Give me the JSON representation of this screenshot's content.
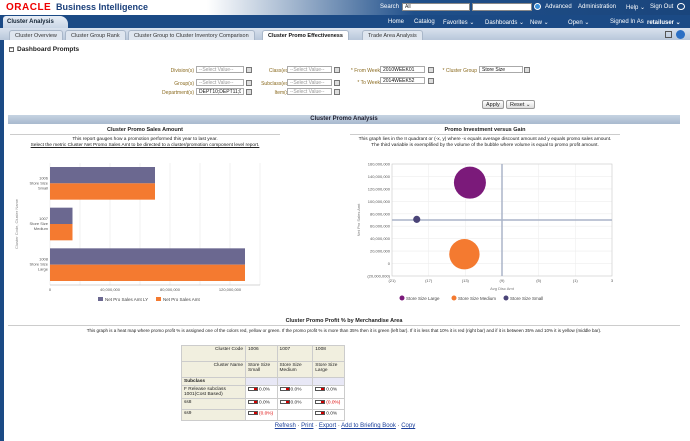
{
  "header": {
    "logo": "ORACLE",
    "title": "Business Intelligence",
    "search_label": "Search",
    "search_scope": "All",
    "advanced": "Advanced",
    "administration": "Administration",
    "help": "Help ⌄",
    "signout": "Sign Out"
  },
  "nav": {
    "dashboard_tab": "Cluster Analysis",
    "home": "Home",
    "catalog": "Catalog",
    "favorites": "Favorites ⌄",
    "dashboards": "Dashboards ⌄",
    "new": "New ⌄",
    "open": "Open ⌄",
    "signed_in_as": "Signed In As",
    "user": "retailuser ⌄"
  },
  "tabs": [
    "Cluster Overview",
    "Cluster Group Rank",
    "Cluster Group to Cluster Inventory Comparison",
    "Cluster Promo Effectiveness",
    "Trade Area Analysis"
  ],
  "prompts": {
    "title": "Dashboard Prompts",
    "division": "Division(s)",
    "group": "Group(s)",
    "department": "Department(s)",
    "class": "Class(es)",
    "subclass": "Subclass(es)",
    "item": "Item(s)",
    "from_week": "* From Week",
    "to_week": "* To Week",
    "cluster_group": "* Cluster Group",
    "placeholder": "--Select Value--",
    "department_value": "DEPT10;DEPT11;D",
    "from_week_value": "2010WEEK01",
    "to_week_value": "2014WEEK52",
    "cluster_group_value": "Store Size",
    "apply": "Apply",
    "reset": "Reset ⌄"
  },
  "section_title": "Cluster Promo Analysis",
  "bar_report": {
    "title": "Cluster Promo Sales Amount",
    "desc1": "This report gauges how a promotion performed this year to last year.",
    "desc2": "Select the metric Cluster Net Promo Sales Amt to be directed to a cluster/promotion component level report."
  },
  "bubble_report": {
    "title": "Promo Investment versus Gain",
    "desc1": "This graph lies in the II quadrant or (-x, y) where -x equals average discount amount and y equals promo sales amount.",
    "desc2": "The third variable is exemplified by the volume of the bubble where volume is equal to promo profit amount."
  },
  "chart_data": [
    {
      "type": "bar",
      "orientation": "horizontal",
      "ylabel": "Cluster Code, Cluster Name",
      "categories": [
        "1006 Store Size Small",
        "1007 Store Size Medium",
        "1008 Store Size Large"
      ],
      "series": [
        {
          "name": "Net Pro Sales Amt LY",
          "color": "#6b6890",
          "values": [
            70000000,
            15000000,
            130000000
          ]
        },
        {
          "name": "Net Pro Sales Amt",
          "color": "#f47a30",
          "values": [
            70000000,
            15000000,
            130000000
          ]
        }
      ],
      "xlim": [
        0,
        140000000
      ],
      "ticks": [
        {
          "v": 0,
          "label": "0"
        },
        {
          "v": 40000000,
          "label": "40,000,000"
        },
        {
          "v": 80000000,
          "label": "80,000,000"
        },
        {
          "v": 120000000,
          "label": "120,000,000"
        }
      ],
      "legend": "bottom",
      "grid": true
    },
    {
      "type": "scatter",
      "subtype": "bubble",
      "xlabel": "Avg Disc Amt",
      "ylabel": "Net Pro Sales Amt",
      "xlim": [
        -21,
        3
      ],
      "ylim": [
        -20000000,
        160000000
      ],
      "xticks": [
        {
          "v": -21,
          "label": "(21)"
        },
        {
          "v": -17,
          "label": "(17)"
        },
        {
          "v": -13,
          "label": "(13)"
        },
        {
          "v": -9,
          "label": "(9)"
        },
        {
          "v": -5,
          "label": "(5)"
        },
        {
          "v": -1,
          "label": "(1)"
        },
        {
          "v": 3,
          "label": "3"
        }
      ],
      "yticks": [
        {
          "v": -20000000,
          "label": "(20,000,000)"
        },
        {
          "v": 0,
          "label": "0"
        },
        {
          "v": 20000000,
          "label": "20,000,000"
        },
        {
          "v": 40000000,
          "label": "40,000,000"
        },
        {
          "v": 60000000,
          "label": "60,000,000"
        },
        {
          "v": 80000000,
          "label": "80,000,000"
        },
        {
          "v": 100000000,
          "label": "100,000,000"
        },
        {
          "v": 120000000,
          "label": "120,000,000"
        },
        {
          "v": 140000000,
          "label": "140,000,000"
        },
        {
          "v": 160000000,
          "label": "160,000,000"
        }
      ],
      "quadrant_lines": {
        "x": -9,
        "y": 70000000
      },
      "series": [
        {
          "name": "Store Size Large",
          "color": "#7b1a7a",
          "x": -12.5,
          "y": 130000000,
          "size": 1
        },
        {
          "name": "Store Size Medium",
          "color": "#f47a30",
          "x": -13.1,
          "y": 15000000,
          "size": 0.9
        },
        {
          "name": "Store Size Small",
          "color": "#4a4478",
          "x": -18.3,
          "y": 71000000,
          "size": 0.05
        }
      ],
      "legend": "bottom",
      "grid": true
    }
  ],
  "heatmap": {
    "title": "Cluster Promo Profit % by Merchandise Area",
    "desc": "This graph is a heat map where promo profit % is assigned one of the colors red, yellow or green. If the promo profit % is more than 35% then it is green (left bar). If it is less that 10% it is red (right bar) and if it is between 35% and 10% it is yellow (middle bar).",
    "cluster_code_label": "Cluster Code",
    "cluster_name_label": "Cluster Name",
    "subclass_label": "Subclass",
    "columns": [
      {
        "code": "1006",
        "name": "Store Size Small"
      },
      {
        "code": "1007",
        "name": "Store Size Medium"
      },
      {
        "code": "1008",
        "name": "Store Size Large"
      }
    ],
    "rows": [
      {
        "label": "F Release subclass 1001(Cost Based)",
        "values": [
          "0.0%",
          "0.0%",
          "0.0%"
        ]
      },
      {
        "label": "ss8",
        "values": [
          "0.0%",
          "0.0%",
          "(0.0%)"
        ]
      },
      {
        "label": "ss9",
        "values": [
          "(0.0%)",
          "",
          "0.0%"
        ]
      }
    ]
  },
  "links": [
    "Refresh",
    "Print",
    "Export",
    "Add to Briefing Book",
    "Copy"
  ]
}
